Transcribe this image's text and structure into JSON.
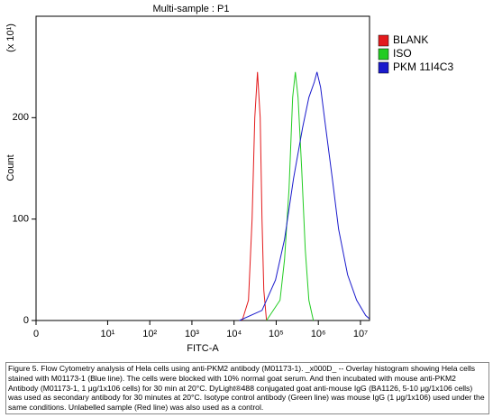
{
  "chart_data": {
    "type": "line",
    "title": "Multi-sample : P1",
    "y_unit": "(x 10¹)",
    "ylabel": "Count",
    "xlabel": "FITC-A",
    "xscale": "biexponential",
    "xlim": [
      0,
      16400000
    ],
    "xticks": [
      0,
      {
        "value": 10,
        "label": "10¹"
      },
      {
        "value": 100,
        "label": "10²"
      },
      {
        "value": 1000,
        "label": "10³"
      },
      {
        "value": 10000,
        "label": "10⁴"
      },
      {
        "value": 100000,
        "label": "10⁵"
      },
      {
        "value": 1000000,
        "label": "10⁶"
      },
      {
        "value": 10000000,
        "label": "10⁷"
      }
    ],
    "ylim": [
      0,
      300
    ],
    "yticks": [
      0,
      100,
      200
    ],
    "legend": "right",
    "series": [
      {
        "name": "BLANK",
        "color": "#e31a1c",
        "x": [
          15600,
          22000,
          26800,
          31000,
          36000,
          41700,
          46000,
          50800,
          58900
        ],
        "values": [
          0,
          20,
          100,
          200,
          245,
          200,
          100,
          30,
          0
        ]
      },
      {
        "name": "ISO",
        "color": "#22cc22",
        "x": [
          58900,
          123000,
          158000,
          202000,
          246000,
          285000,
          330000,
          402000,
          490000,
          596000,
          763000
        ],
        "values": [
          0,
          20,
          60,
          130,
          220,
          245,
          220,
          150,
          70,
          20,
          0
        ]
      },
      {
        "name": "PKM 11I4C3",
        "color": "#1a1acc",
        "x": [
          13400,
          46000,
          96400,
          158000,
          258000,
          422000,
          596000,
          801000,
          929000,
          1130000,
          1450000,
          2150000,
          3030000,
          4950000,
          8110000,
          13300000,
          16000000
        ],
        "values": [
          0,
          10,
          40,
          80,
          140,
          190,
          220,
          235,
          245,
          230,
          195,
          140,
          90,
          45,
          20,
          5,
          2
        ]
      }
    ]
  },
  "caption": "Figure 5. Flow Cytometry analysis of Hela cells using anti-PKM2 antibody (M01173-1). _x000D_ -- Overlay histogram showing Hela cells stained with M01173-1 (Blue line). The cells were blocked with 10% normal goat serum. And then incubated with mouse anti-PKM2 Antibody (M01173-1, 1 μg/1x106 cells) for 30 min at 20°C. DyLight®488 conjugated goat anti-mouse IgG (BA1126, 5-10 μg/1x106 cells) was used as secondary antibody for 30 minutes at 20°C. Isotype control antibody (Green line) was mouse IgG (1 μg/1x106) used under the same conditions. Unlabelled sample (Red line) was also used as a control."
}
